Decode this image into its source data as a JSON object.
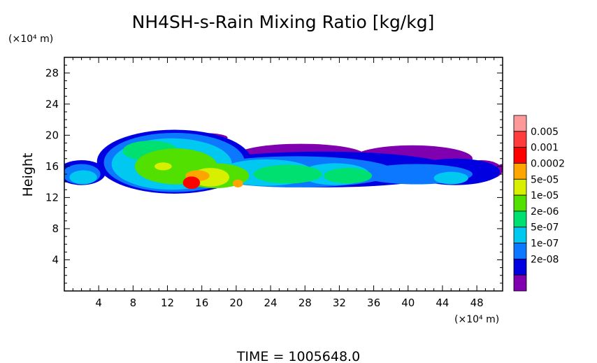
{
  "chart_data": {
    "type": "heatmap",
    "title": "NH4SH-s-Rain Mixing Ratio [kg/kg]",
    "ylabel": "Height",
    "xunit": "(×10⁴ m)",
    "yunit": "(×10⁴ m)",
    "footer": "TIME  =  1005648.0",
    "xlim": [
      0,
      51
    ],
    "ylim": [
      0,
      30
    ],
    "xticks": [
      4,
      8,
      12,
      16,
      20,
      24,
      28,
      32,
      36,
      40,
      44,
      48
    ],
    "yticks": [
      4,
      8,
      12,
      16,
      20,
      24,
      28
    ],
    "grid": false,
    "legend": "right",
    "colorbar": {
      "levels": [
        "0.005",
        "0.001",
        "0.0002",
        "5e-05",
        "1e-05",
        "2e-06",
        "5e-07",
        "1e-07",
        "2e-08"
      ],
      "colors": [
        "#ff9999",
        "#ff3c3c",
        "#ff0000",
        "#ffa500",
        "#d8f000",
        "#52e000",
        "#00e070",
        "#00c8f0",
        "#0c78ff",
        "#0000e0",
        "#8000b0"
      ]
    },
    "field": {
      "description_free": true,
      "blobs": [
        {
          "x": 14.8,
          "y": 13.9,
          "rx": 1.0,
          "ry": 0.8,
          "level": 8
        },
        {
          "x": 15.5,
          "y": 14.8,
          "rx": 1.4,
          "ry": 0.7,
          "level": 7
        },
        {
          "x": 20.2,
          "y": 13.8,
          "rx": 0.6,
          "ry": 0.5,
          "level": 7
        },
        {
          "x": 11.5,
          "y": 16.0,
          "rx": 1.0,
          "ry": 0.5,
          "level": 6
        },
        {
          "x": 17.0,
          "y": 14.6,
          "rx": 2.2,
          "ry": 1.2,
          "level": 6
        },
        {
          "x": 13.0,
          "y": 16.0,
          "rx": 4.8,
          "ry": 2.3,
          "level": 5
        },
        {
          "x": 17.5,
          "y": 14.8,
          "rx": 4.0,
          "ry": 1.6,
          "level": 5
        },
        {
          "x": 10.0,
          "y": 18.0,
          "rx": 3.2,
          "ry": 1.3,
          "level": 4
        },
        {
          "x": 26.0,
          "y": 15.0,
          "rx": 4.0,
          "ry": 1.2,
          "level": 4
        },
        {
          "x": 33.0,
          "y": 14.8,
          "rx": 2.8,
          "ry": 1.0,
          "level": 4
        },
        {
          "x": 12.5,
          "y": 16.3,
          "rx": 7.0,
          "ry": 3.3,
          "level": 3
        },
        {
          "x": 23.5,
          "y": 15.2,
          "rx": 5.5,
          "ry": 1.7,
          "level": 3
        },
        {
          "x": 31.5,
          "y": 15.0,
          "rx": 4.0,
          "ry": 1.4,
          "level": 3
        },
        {
          "x": 45.0,
          "y": 14.5,
          "rx": 2.0,
          "ry": 0.8,
          "level": 3
        },
        {
          "x": 2.2,
          "y": 14.6,
          "rx": 1.6,
          "ry": 0.9,
          "level": 3
        },
        {
          "x": 12.8,
          "y": 16.5,
          "rx": 8.2,
          "ry": 3.8,
          "level": 2
        },
        {
          "x": 27.0,
          "y": 15.3,
          "rx": 11.5,
          "ry": 2.0,
          "level": 2
        },
        {
          "x": 41.0,
          "y": 15.0,
          "rx": 6.5,
          "ry": 1.3,
          "level": 2
        },
        {
          "x": 2.0,
          "y": 15.0,
          "rx": 2.2,
          "ry": 1.3,
          "level": 2
        },
        {
          "x": 12.8,
          "y": 16.6,
          "rx": 9.0,
          "ry": 4.1,
          "level": 1
        },
        {
          "x": 30.0,
          "y": 15.6,
          "rx": 15.5,
          "ry": 2.3,
          "level": 1
        },
        {
          "x": 45.5,
          "y": 15.3,
          "rx": 5.2,
          "ry": 1.7,
          "level": 1
        },
        {
          "x": 2.0,
          "y": 15.2,
          "rx": 2.8,
          "ry": 1.6,
          "level": 1
        },
        {
          "x": 40.5,
          "y": 17.0,
          "rx": 7.0,
          "ry": 1.7,
          "level": 0
        },
        {
          "x": 27.5,
          "y": 17.4,
          "rx": 7.5,
          "ry": 1.5,
          "level": 0
        },
        {
          "x": 34.0,
          "y": 16.5,
          "rx": 4.0,
          "ry": 1.3,
          "level": 0
        },
        {
          "x": 48.5,
          "y": 15.5,
          "rx": 2.5,
          "ry": 1.3,
          "level": 0
        },
        {
          "x": 51.0,
          "y": 15.8,
          "rx": 0.6,
          "ry": 0.5,
          "level": 0
        },
        {
          "x": 16.0,
          "y": 19.7,
          "rx": 3.0,
          "ry": 0.6,
          "level": 0
        }
      ]
    }
  }
}
